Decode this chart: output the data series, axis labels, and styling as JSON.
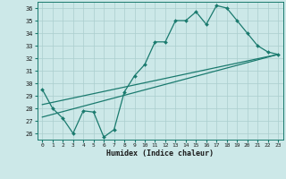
{
  "title": "",
  "xlabel": "Humidex (Indice chaleur)",
  "bg_color": "#cce8e8",
  "grid_color": "#aacece",
  "line_color": "#1a7a6e",
  "xlim": [
    -0.5,
    23.5
  ],
  "ylim": [
    25.5,
    36.5
  ],
  "xticks": [
    0,
    1,
    2,
    3,
    4,
    5,
    6,
    7,
    8,
    9,
    10,
    11,
    12,
    13,
    14,
    15,
    16,
    17,
    18,
    19,
    20,
    21,
    22,
    23
  ],
  "yticks": [
    26,
    27,
    28,
    29,
    30,
    31,
    32,
    33,
    34,
    35,
    36
  ],
  "series1_x": [
    0,
    1,
    2,
    3,
    4,
    5,
    6,
    7,
    8,
    9,
    10,
    11,
    12,
    13,
    14,
    15,
    16,
    17,
    18,
    19,
    20,
    21,
    22,
    23
  ],
  "series1_y": [
    29.5,
    28.0,
    27.2,
    26.0,
    27.8,
    27.7,
    25.7,
    26.3,
    29.3,
    30.6,
    31.5,
    33.3,
    33.3,
    35.0,
    35.0,
    35.7,
    34.7,
    36.2,
    36.0,
    35.0,
    34.0,
    33.0,
    32.5,
    32.3
  ],
  "series2_x": [
    0,
    23
  ],
  "series2_y": [
    28.3,
    32.3
  ],
  "series3_x": [
    0,
    23
  ],
  "series3_y": [
    27.3,
    32.3
  ]
}
